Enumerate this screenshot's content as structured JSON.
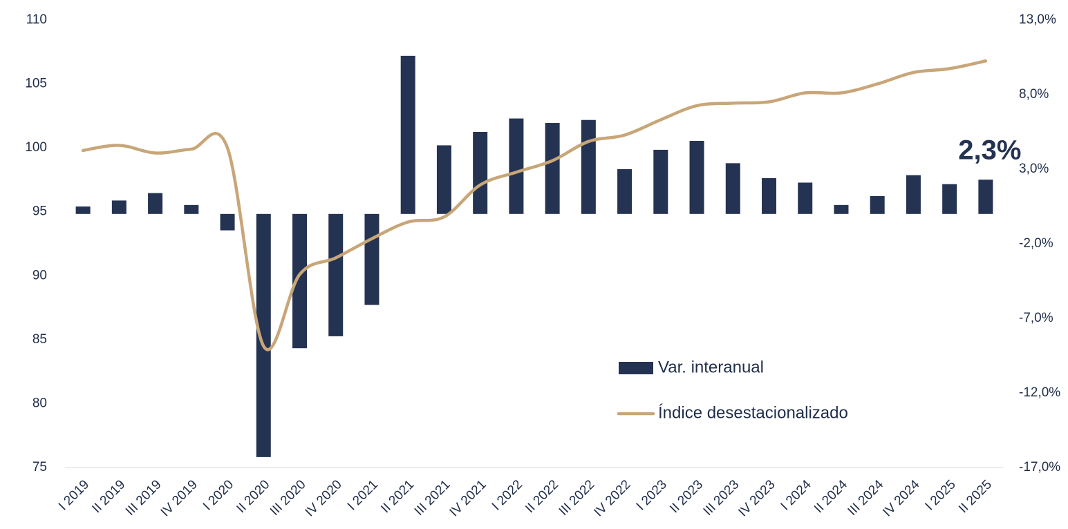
{
  "chart_data": {
    "type": "bar-line",
    "categories": [
      "I 2019",
      "II 2019",
      "III 2019",
      "IV 2019",
      "I 2020",
      "II 2020",
      "III 2020",
      "IV 2020",
      "I 2021",
      "II 2021",
      "III 2021",
      "IV 2021",
      "I 2022",
      "II 2022",
      "III 2022",
      "IV 2022",
      "I 2023",
      "II 2023",
      "III 2023",
      "IV 2023",
      "I 2024",
      "II 2024",
      "III 2024",
      "IV 2024",
      "I 2025",
      "II 2025"
    ],
    "series": [
      {
        "name": "Var. interanual",
        "type": "bar",
        "axis": "y2",
        "color": "#253352",
        "values": [
          0.5,
          0.9,
          1.4,
          0.6,
          -1.1,
          -16.3,
          -9.0,
          -8.2,
          -6.1,
          10.6,
          4.6,
          5.5,
          6.4,
          6.1,
          6.3,
          3.0,
          4.3,
          4.9,
          3.4,
          2.4,
          2.1,
          0.6,
          1.2,
          2.6,
          2.0,
          2.3
        ],
        "value_labels": [
          null,
          null,
          null,
          null,
          null,
          null,
          null,
          null,
          null,
          null,
          null,
          null,
          null,
          null,
          null,
          null,
          null,
          null,
          null,
          null,
          null,
          null,
          null,
          null,
          null,
          "2,3%"
        ]
      },
      {
        "name": "Índice desestacionalizado",
        "type": "line",
        "color": "#c8a678",
        "values": [
          99.8,
          100.2,
          99.6,
          99.9,
          100.0,
          84.5,
          90.1,
          91.4,
          92.9,
          94.2,
          94.6,
          97.1,
          98.1,
          99.0,
          100.5,
          101.0,
          102.2,
          103.3,
          103.5,
          103.6,
          104.3,
          104.3,
          105.0,
          105.9,
          106.2,
          106.8
        ]
      }
    ],
    "ylim": [
      75,
      110
    ],
    "yticks": [
      75,
      80,
      85,
      90,
      95,
      100,
      105,
      110
    ],
    "y2lim": [
      -17,
      13
    ],
    "y2ticks": [
      {
        "value": -17,
        "label": "-17,0%"
      },
      {
        "value": -12,
        "label": "-12,0%"
      },
      {
        "value": -7,
        "label": "-7,0%"
      },
      {
        "value": -2,
        "label": "-2,0%"
      },
      {
        "value": 3,
        "label": "3,0%"
      },
      {
        "value": 8,
        "label": "8,0%"
      },
      {
        "value": 13,
        "label": "13,0%"
      }
    ],
    "legend": "center-right",
    "grid": false
  }
}
